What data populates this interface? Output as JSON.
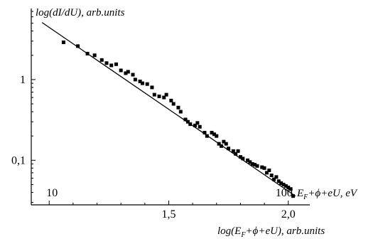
{
  "chart_data": {
    "type": "scatter",
    "title": "",
    "ylabel": "log(dI/dU), arb.units",
    "xlabel": "log(E_F+ϕ+eU), arb.units",
    "xlabel_parts": {
      "pre": "log(E",
      "sub": "F",
      "post": "+ϕ+eU), arb.units"
    },
    "top_axis_label_parts": {
      "pre": "E",
      "sub": "F",
      "post": "+ϕ+eU, eV"
    },
    "x_scale": "linear",
    "y_scale": "log",
    "xlim": [
      0.925,
      2.09
    ],
    "ylim": [
      0.028,
      7.6
    ],
    "x_ticks": [
      {
        "value": 1.5,
        "label": "1,5"
      },
      {
        "value": 2.0,
        "label": "2,0"
      }
    ],
    "y_ticks": [
      {
        "value": 1,
        "label": "1"
      },
      {
        "value": 0.1,
        "label": "0,1"
      }
    ],
    "inner_labels": [
      {
        "x": 1.0,
        "label": "10"
      },
      {
        "x": 2.0,
        "label": "100"
      }
    ],
    "grid": false,
    "series": [
      {
        "kind": "points",
        "marker": "square",
        "color": "#000000",
        "x": [
          1.06,
          1.12,
          1.16,
          1.19,
          1.22,
          1.24,
          1.26,
          1.28,
          1.3,
          1.32,
          1.33,
          1.35,
          1.36,
          1.38,
          1.39,
          1.41,
          1.43,
          1.44,
          1.46,
          1.48,
          1.49,
          1.51,
          1.52,
          1.54,
          1.55,
          1.57,
          1.58,
          1.59,
          1.61,
          1.62,
          1.63,
          1.65,
          1.66,
          1.68,
          1.69,
          1.7,
          1.71,
          1.72,
          1.73,
          1.74,
          1.75,
          1.77,
          1.78,
          1.79,
          1.8,
          1.81,
          1.83,
          1.84,
          1.85,
          1.86,
          1.87,
          1.89,
          1.9,
          1.91,
          1.92,
          1.93,
          1.94,
          1.95,
          1.96,
          1.97,
          1.98,
          1.99,
          2.0,
          2.01,
          2.02
        ],
        "y": [
          2.9,
          2.6,
          2.1,
          2.0,
          1.75,
          1.6,
          1.5,
          1.55,
          1.3,
          1.2,
          1.25,
          1.15,
          1.0,
          0.95,
          0.9,
          0.88,
          0.8,
          0.65,
          0.62,
          0.6,
          0.65,
          0.55,
          0.5,
          0.45,
          0.4,
          0.32,
          0.3,
          0.28,
          0.27,
          0.29,
          0.26,
          0.22,
          0.2,
          0.22,
          0.21,
          0.2,
          0.16,
          0.15,
          0.17,
          0.16,
          0.14,
          0.13,
          0.12,
          0.13,
          0.11,
          0.105,
          0.1,
          0.095,
          0.09,
          0.088,
          0.085,
          0.082,
          0.08,
          0.07,
          0.075,
          0.065,
          0.058,
          0.062,
          0.055,
          0.052,
          0.05,
          0.048,
          0.046,
          0.044,
          0.036
        ]
      },
      {
        "kind": "fit-line",
        "color": "#000000",
        "x": [
          0.97,
          2.03
        ],
        "y": [
          5.1,
          0.036
        ]
      }
    ]
  }
}
